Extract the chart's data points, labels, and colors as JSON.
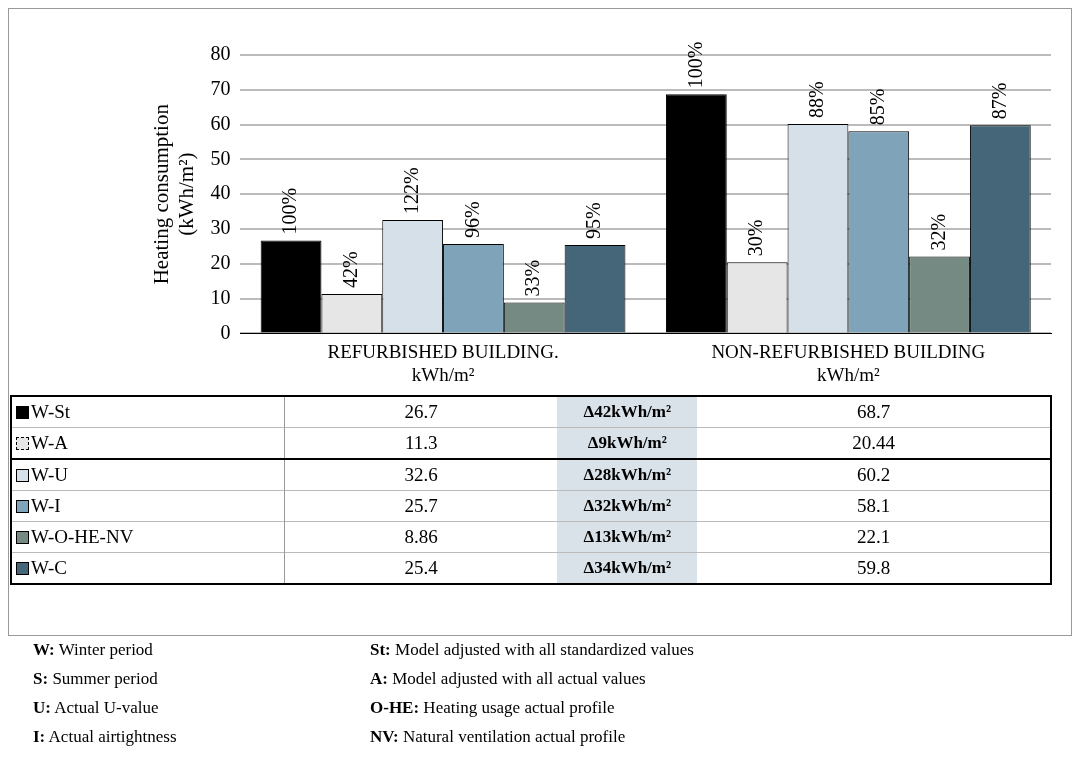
{
  "chart_data": {
    "type": "bar",
    "ylabel": "Heating consumption\n(kWh/m²)",
    "categories": [
      "REFURBISHED BUILDING.\nkWh/m²",
      "NON-REFURBISHED BUILDING\nkWh/m²"
    ],
    "series": [
      {
        "name": "W-St",
        "color": "#000000",
        "values": [
          26.7,
          68.7
        ]
      },
      {
        "name": "W-A",
        "color": "#e6e6e6",
        "values": [
          11.3,
          20.44
        ],
        "line_style": "dashed"
      },
      {
        "name": "W-U",
        "color": "#d5e0e8",
        "values": [
          32.6,
          60.2
        ]
      },
      {
        "name": "W-I",
        "color": "#7fa3b8",
        "values": [
          25.7,
          58.1
        ]
      },
      {
        "name": "W-O-HE-NV",
        "color": "#748a82",
        "values": [
          8.86,
          22.1
        ]
      },
      {
        "name": "W-C",
        "color": "#456678",
        "values": [
          25.4,
          59.8
        ]
      }
    ],
    "ylim": [
      0,
      80
    ],
    "yticks": [
      0,
      10,
      20,
      30,
      40,
      50,
      60,
      70,
      80
    ],
    "grid": "y",
    "legend": "bottom",
    "data_labels": true,
    "annotations": [
      "Δ42kWh/m²",
      "Δ9kWh/m²",
      "Δ28kWh/m²",
      "Δ32kWh/m²",
      "Δ13kWh/m²",
      "Δ34kWh/m²",
      "100%",
      "42%",
      "122%",
      "96%",
      "33%",
      "95%",
      "100%",
      "30%",
      "88%",
      "85%",
      "32%",
      "87%",
      "W: Winter period",
      "St: Model adjusted with all standardized values",
      "S: Summer period",
      "A: Model adjusted with all actual values",
      "U: Actual U-value",
      "O-HE: Heating usage actual profile",
      "I: Actual airtightness",
      "NV: Natural ventilation actual profile"
    ]
  }
}
